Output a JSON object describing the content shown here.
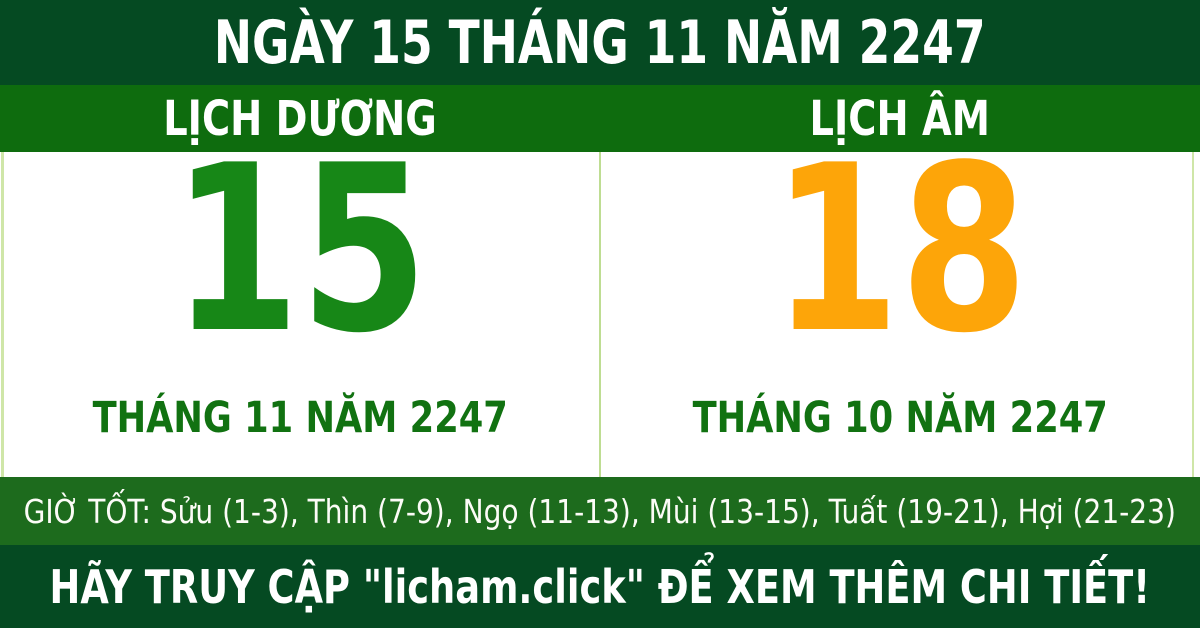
{
  "banner": {
    "title": "NGÀY 15 THÁNG 11 NĂM 2247"
  },
  "calendar": {
    "solar": {
      "header": "LỊCH DƯƠNG",
      "day": "15",
      "month_year": "THÁNG 11 NĂM 2247",
      "day_color": "#178717"
    },
    "lunar": {
      "header": "LỊCH ÂM",
      "day": "18",
      "month_year": "THÁNG 10 NĂM 2247",
      "day_color": "#fda509"
    }
  },
  "good_hours": {
    "label": "GIỜ TỐT:",
    "slots": [
      {
        "name": "Sửu",
        "range": "1-3"
      },
      {
        "name": "Thìn",
        "range": "7-9"
      },
      {
        "name": "Ngọ",
        "range": "11-13"
      },
      {
        "name": "Mùi",
        "range": "13-15"
      },
      {
        "name": "Tuất",
        "range": "19-21"
      },
      {
        "name": "Hợi",
        "range": "21-23"
      }
    ],
    "text": "GIỜ TỐT: Sửu (1-3), Thìn (7-9), Ngọ (11-13), Mùi (13-15), Tuất (19-21), Hợi (21-23)"
  },
  "footer": {
    "text": "HÃY TRUY CẬP \"licham.click\" ĐỂ XEM THÊM CHI TIẾT!"
  },
  "colors": {
    "dark_green_banner": "#054a22",
    "green_header_row": "#0e6c0e",
    "green_hours_row": "#1d6b1d",
    "solar_day_green": "#178717",
    "lunar_day_orange": "#fda509",
    "month_text_green": "#117211",
    "divider_light_green": "#bedd92",
    "text_white": "#ffffff",
    "body_white": "#ffffff"
  }
}
